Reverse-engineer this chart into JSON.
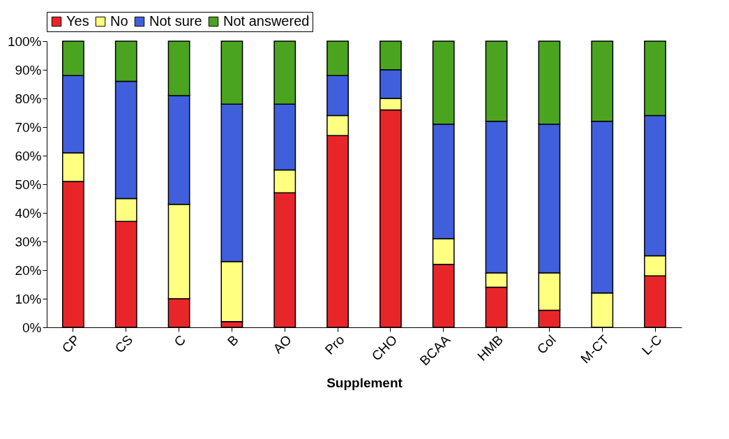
{
  "chart_data": {
    "type": "bar",
    "stacked": true,
    "xlabel": "Supplement",
    "legend": "top",
    "grid": false,
    "categories": [
      "CP",
      "CS",
      "C",
      "B",
      "AO",
      "Pro",
      "CHO",
      "BCAA",
      "HMB",
      "Col",
      "M-CT",
      "L-C"
    ],
    "ylim": [
      0,
      100
    ],
    "yticks": [
      {
        "value": 0,
        "label": "0%"
      },
      {
        "value": 10,
        "label": "10%"
      },
      {
        "value": 20,
        "label": "20%"
      },
      {
        "value": 30,
        "label": "30%"
      },
      {
        "value": 40,
        "label": "40%"
      },
      {
        "value": 50,
        "label": "50%"
      },
      {
        "value": 60,
        "label": "60%"
      },
      {
        "value": 70,
        "label": "70%"
      },
      {
        "value": 80,
        "label": "80%"
      },
      {
        "value": 90,
        "label": "90%"
      },
      {
        "value": 100,
        "label": "100%"
      }
    ],
    "series": [
      {
        "name": "Yes",
        "color": "#e8262a",
        "values": [
          51,
          37,
          10,
          2,
          47,
          67,
          76,
          22,
          14,
          6,
          0,
          18
        ]
      },
      {
        "name": "No",
        "color": "#ffff80",
        "values": [
          10,
          8,
          33,
          21,
          8,
          7,
          4,
          9,
          5,
          13,
          12,
          7
        ]
      },
      {
        "name": "Not sure",
        "color": "#3f5fdc",
        "values": [
          27,
          41,
          38,
          55,
          23,
          14,
          10,
          40,
          53,
          52,
          60,
          49
        ]
      },
      {
        "name": "Not answered",
        "color": "#4aa420",
        "values": [
          12,
          14,
          19,
          22,
          22,
          12,
          10,
          29,
          28,
          29,
          28,
          26
        ]
      }
    ]
  }
}
